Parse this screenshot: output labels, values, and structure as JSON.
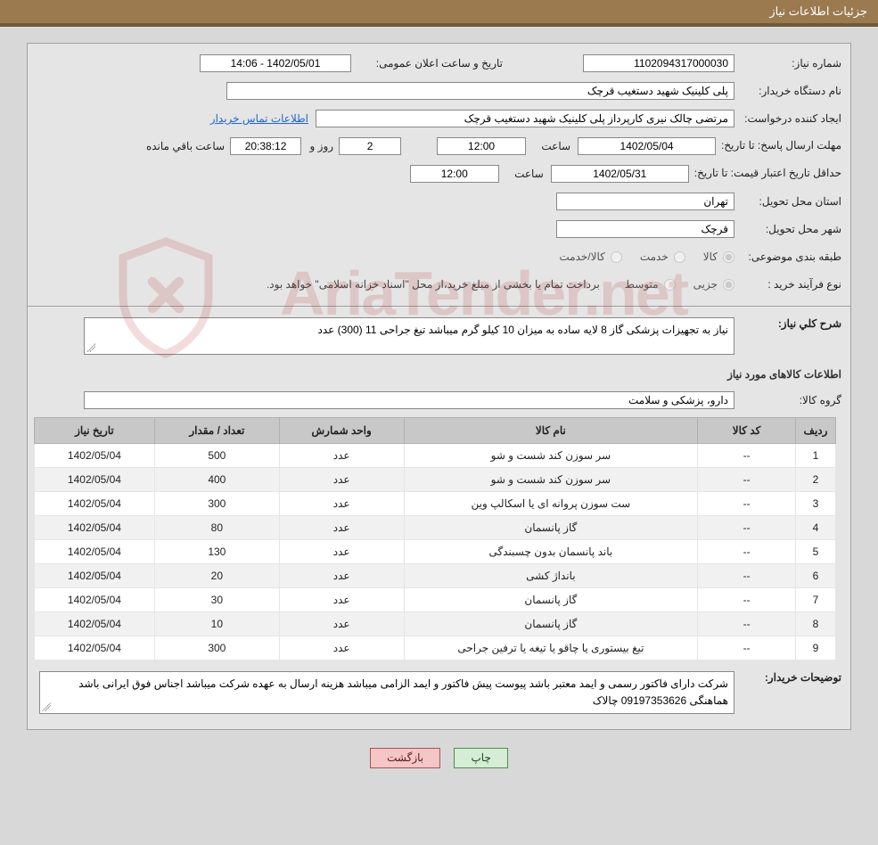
{
  "header": {
    "title": "جزئیات اطلاعات نیاز"
  },
  "info": {
    "need_number_label": "شماره نیاز:",
    "need_number": "1102094317000030",
    "announce_date_label": "تاریخ و ساعت اعلان عمومی:",
    "announce_date": "14:06 - 1402/05/01",
    "buyer_org_label": "نام دستگاه خریدار:",
    "buyer_org": "پلی کلینیک شهید دستغیب قرچک",
    "requester_label": "ایجاد کننده درخواست:",
    "requester": "مرتضی چالک نیری کارپرداز پلی کلینیک شهید دستغیب قرچک",
    "contact_link": "اطلاعات تماس خریدار",
    "deadline_label": "مهلت ارسال پاسخ: تا تاریخ:",
    "deadline_date": "1402/05/04",
    "time_label": "ساعت",
    "deadline_time": "12:00",
    "days_remaining": "2",
    "days_and": "روز و",
    "countdown": "20:38:12",
    "hours_remaining": "ساعت باقي مانده",
    "validity_label": "حداقل تاریخ اعتبار قیمت: تا تاریخ:",
    "validity_date": "1402/05/31",
    "validity_time": "12:00",
    "delivery_province_label": "استان محل تحویل:",
    "delivery_province": "تهران",
    "delivery_city_label": "شهر محل تحویل:",
    "delivery_city": "قرچک",
    "category_label": "طبقه بندی موضوعی:",
    "cat_goods": "کالا",
    "cat_service": "خدمت",
    "cat_goods_service": "کالا/خدمت",
    "process_label": "نوع فرآیند خرید :",
    "proc_partial": "جزیی",
    "proc_medium": "متوسط",
    "payment_note": "برداخت تمام یا بخشی از مبلغ خرید،از محل \"اسناد خزانه اسلامی\" خواهد بود."
  },
  "need": {
    "summary_label": "شرح کلي نياز:",
    "summary": "نیاز به تجهیزات پزشکی گاز 8 لایه ساده به میزان 10 کیلو گرم میباشد تیغ جراحی 11 (300) عدد",
    "items_title": "اطلاعات کالاهای مورد نیاز",
    "group_label": "گروه کالا:",
    "group": "دارو، پزشکی و سلامت"
  },
  "table": {
    "columns": {
      "row": "ردیف",
      "code": "کد کالا",
      "name": "نام کالا",
      "unit": "واحد شمارش",
      "qty": "تعداد / مقدار",
      "date": "تاریخ نیاز"
    },
    "col_widths": {
      "row": "45px",
      "code": "110px",
      "name": "330px",
      "unit": "140px",
      "qty": "140px",
      "date": "135px"
    },
    "rows": [
      {
        "row": "1",
        "code": "--",
        "name": "سر سوزن کند شست و شو",
        "unit": "عدد",
        "qty": "500",
        "date": "1402/05/04"
      },
      {
        "row": "2",
        "code": "--",
        "name": "سر سوزن کند شست و شو",
        "unit": "عدد",
        "qty": "400",
        "date": "1402/05/04"
      },
      {
        "row": "3",
        "code": "--",
        "name": "ست سوزن پروانه ای یا اسکالپ وین",
        "unit": "عدد",
        "qty": "300",
        "date": "1402/05/04"
      },
      {
        "row": "4",
        "code": "--",
        "name": "گاز پانسمان",
        "unit": "عدد",
        "qty": "80",
        "date": "1402/05/04"
      },
      {
        "row": "5",
        "code": "--",
        "name": "باند پانسمان بدون چسبندگی",
        "unit": "عدد",
        "qty": "130",
        "date": "1402/05/04"
      },
      {
        "row": "6",
        "code": "--",
        "name": "بانداژ کشی",
        "unit": "عدد",
        "qty": "20",
        "date": "1402/05/04"
      },
      {
        "row": "7",
        "code": "--",
        "name": "گاز پانسمان",
        "unit": "عدد",
        "qty": "30",
        "date": "1402/05/04"
      },
      {
        "row": "8",
        "code": "--",
        "name": "گاز پانسمان",
        "unit": "عدد",
        "qty": "10",
        "date": "1402/05/04"
      },
      {
        "row": "9",
        "code": "--",
        "name": "تیغ بیستوری یا چاقو یا تیغه یا ترفین جراحی",
        "unit": "عدد",
        "qty": "300",
        "date": "1402/05/04"
      }
    ]
  },
  "buyer_notes": {
    "label": "توضیحات خریدار:",
    "text": "شرکت دارای فاکتور رسمی و ایمد معتبر باشد پیوست پیش فاکتور و ایمد الزامی میباشد هزینه ارسال به عهده شرکت میباشد اجناس فوق ایرانی باشد هماهنگی 09197353626 چالاک"
  },
  "buttons": {
    "print": "چاپ",
    "back": "بازگشت"
  },
  "watermark": {
    "text": "AriaTender.net"
  },
  "colors": {
    "header_bg": "#9b7a4f",
    "header_border": "#705a3a",
    "panel_bg": "#e5e5e5",
    "panel_border": "#a0a0a0",
    "field_border": "#888888",
    "th_bg": "#c8c8c8",
    "row_alt": "#f1f1f1",
    "link": "#2266cc",
    "btn_print_bg": "#d5ecd5",
    "btn_back_bg": "#f5c6c6",
    "watermark": "#b61f1f"
  }
}
